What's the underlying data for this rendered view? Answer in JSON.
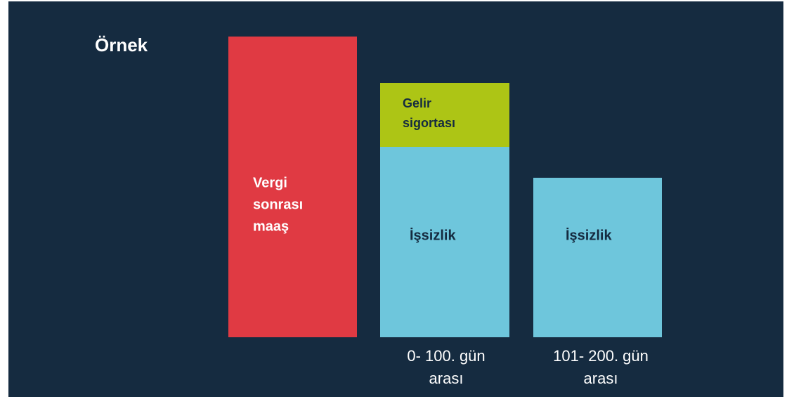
{
  "title": "Örnek",
  "bars": [
    {
      "segments": [
        {
          "label": [
            "Vergi",
            "sonrası",
            "maaş"
          ]
        }
      ]
    },
    {
      "segments": [
        {
          "label": [
            "İşsizlik"
          ]
        },
        {
          "label": [
            "Gelir",
            "sigortası"
          ]
        }
      ],
      "caption": [
        "0- 100. gün",
        "arası"
      ]
    },
    {
      "segments": [
        {
          "label": [
            "İşsizlik"
          ]
        }
      ],
      "caption": [
        "101- 200. gün",
        "arası"
      ]
    }
  ]
}
